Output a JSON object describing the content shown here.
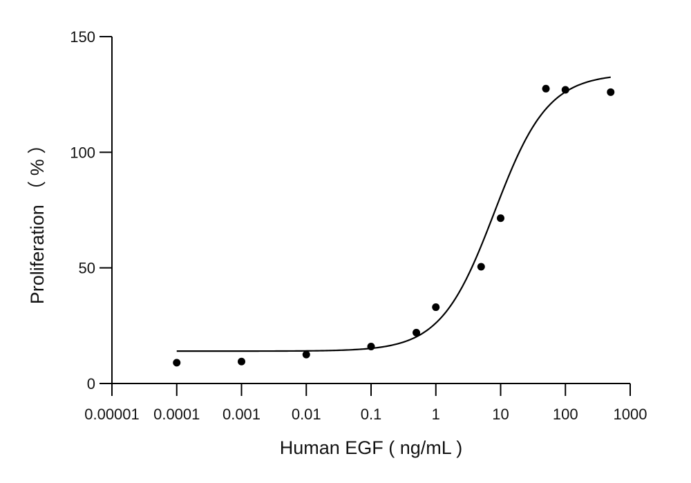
{
  "chart_data": {
    "type": "scatter",
    "title": "",
    "xlabel": "Human EGF ( ng/mL )",
    "ylabel": "Proliferation （ % ）",
    "x_scale": "log",
    "xlim": [
      1e-05,
      1000
    ],
    "ylim": [
      0,
      150
    ],
    "x_ticks": [
      1e-05,
      0.0001,
      0.001,
      0.01,
      0.1,
      1,
      10,
      100,
      1000
    ],
    "x_tick_labels": [
      "0.00001",
      "0.0001",
      "0.001",
      "0.01",
      "0.1",
      "1",
      "10",
      "100",
      "1000"
    ],
    "y_ticks": [
      0,
      50,
      100,
      150
    ],
    "y_tick_labels": [
      "0",
      "50",
      "100",
      "150"
    ],
    "grid": false,
    "legend": "none",
    "series": [
      {
        "points": [
          {
            "x": 0.0001,
            "y": 9
          },
          {
            "x": 0.001,
            "y": 9.5
          },
          {
            "x": 0.01,
            "y": 12.5
          },
          {
            "x": 0.1,
            "y": 16
          },
          {
            "x": 0.5,
            "y": 22
          },
          {
            "x": 1,
            "y": 33
          },
          {
            "x": 5,
            "y": 50.5
          },
          {
            "x": 10,
            "y": 71.5
          },
          {
            "x": 50,
            "y": 127.5
          },
          {
            "x": 100,
            "y": 127
          },
          {
            "x": 500,
            "y": 126
          }
        ],
        "fit": {
          "model": "4PL",
          "bottom": 14,
          "top": 134,
          "ec50": 8,
          "hill": 1.05,
          "x_from": 0.0001,
          "x_to": 500
        }
      }
    ],
    "colors": {
      "marks": "#000000",
      "axes": "#000000"
    }
  }
}
